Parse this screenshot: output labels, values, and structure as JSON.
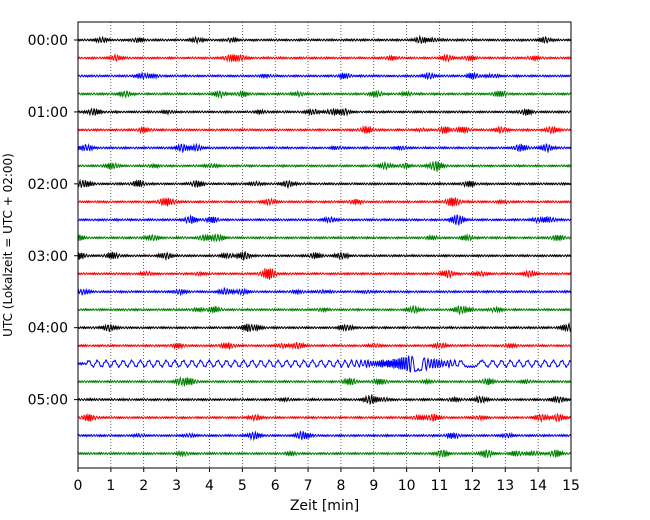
{
  "chart_data": {
    "type": "line",
    "title": "",
    "xlabel": "Zeit  [min]",
    "ylabel": "UTC (Lokalzeit = UTC + 02:00)",
    "xlim": [
      0,
      15
    ],
    "x_ticks": [
      0,
      1,
      2,
      3,
      4,
      5,
      6,
      7,
      8,
      9,
      10,
      11,
      12,
      13,
      14,
      15
    ],
    "x_tick_labels": [
      "0",
      "1",
      "2",
      "3",
      "4",
      "5",
      "6",
      "7",
      "8",
      "9",
      "10",
      "11",
      "12",
      "13",
      "14",
      "15"
    ],
    "y_tick_labels": [
      "00:00",
      "01:00",
      "02:00",
      "03:00",
      "04:00",
      "05:00"
    ],
    "y_tick_rows": [
      0,
      4,
      8,
      12,
      16,
      20
    ],
    "row_count": 24,
    "minutes_per_row": 15,
    "grid": "vertical dotted lines at each minute",
    "trace_colors": [
      "#000000",
      "#ff0000",
      "#0000ff",
      "#008000"
    ],
    "event": {
      "row": 18,
      "description": "large-amplitude oscillation",
      "emergent_start_min": 0.3,
      "peak_min": 10.2,
      "peak_amplitude_rel": 1.0
    }
  }
}
